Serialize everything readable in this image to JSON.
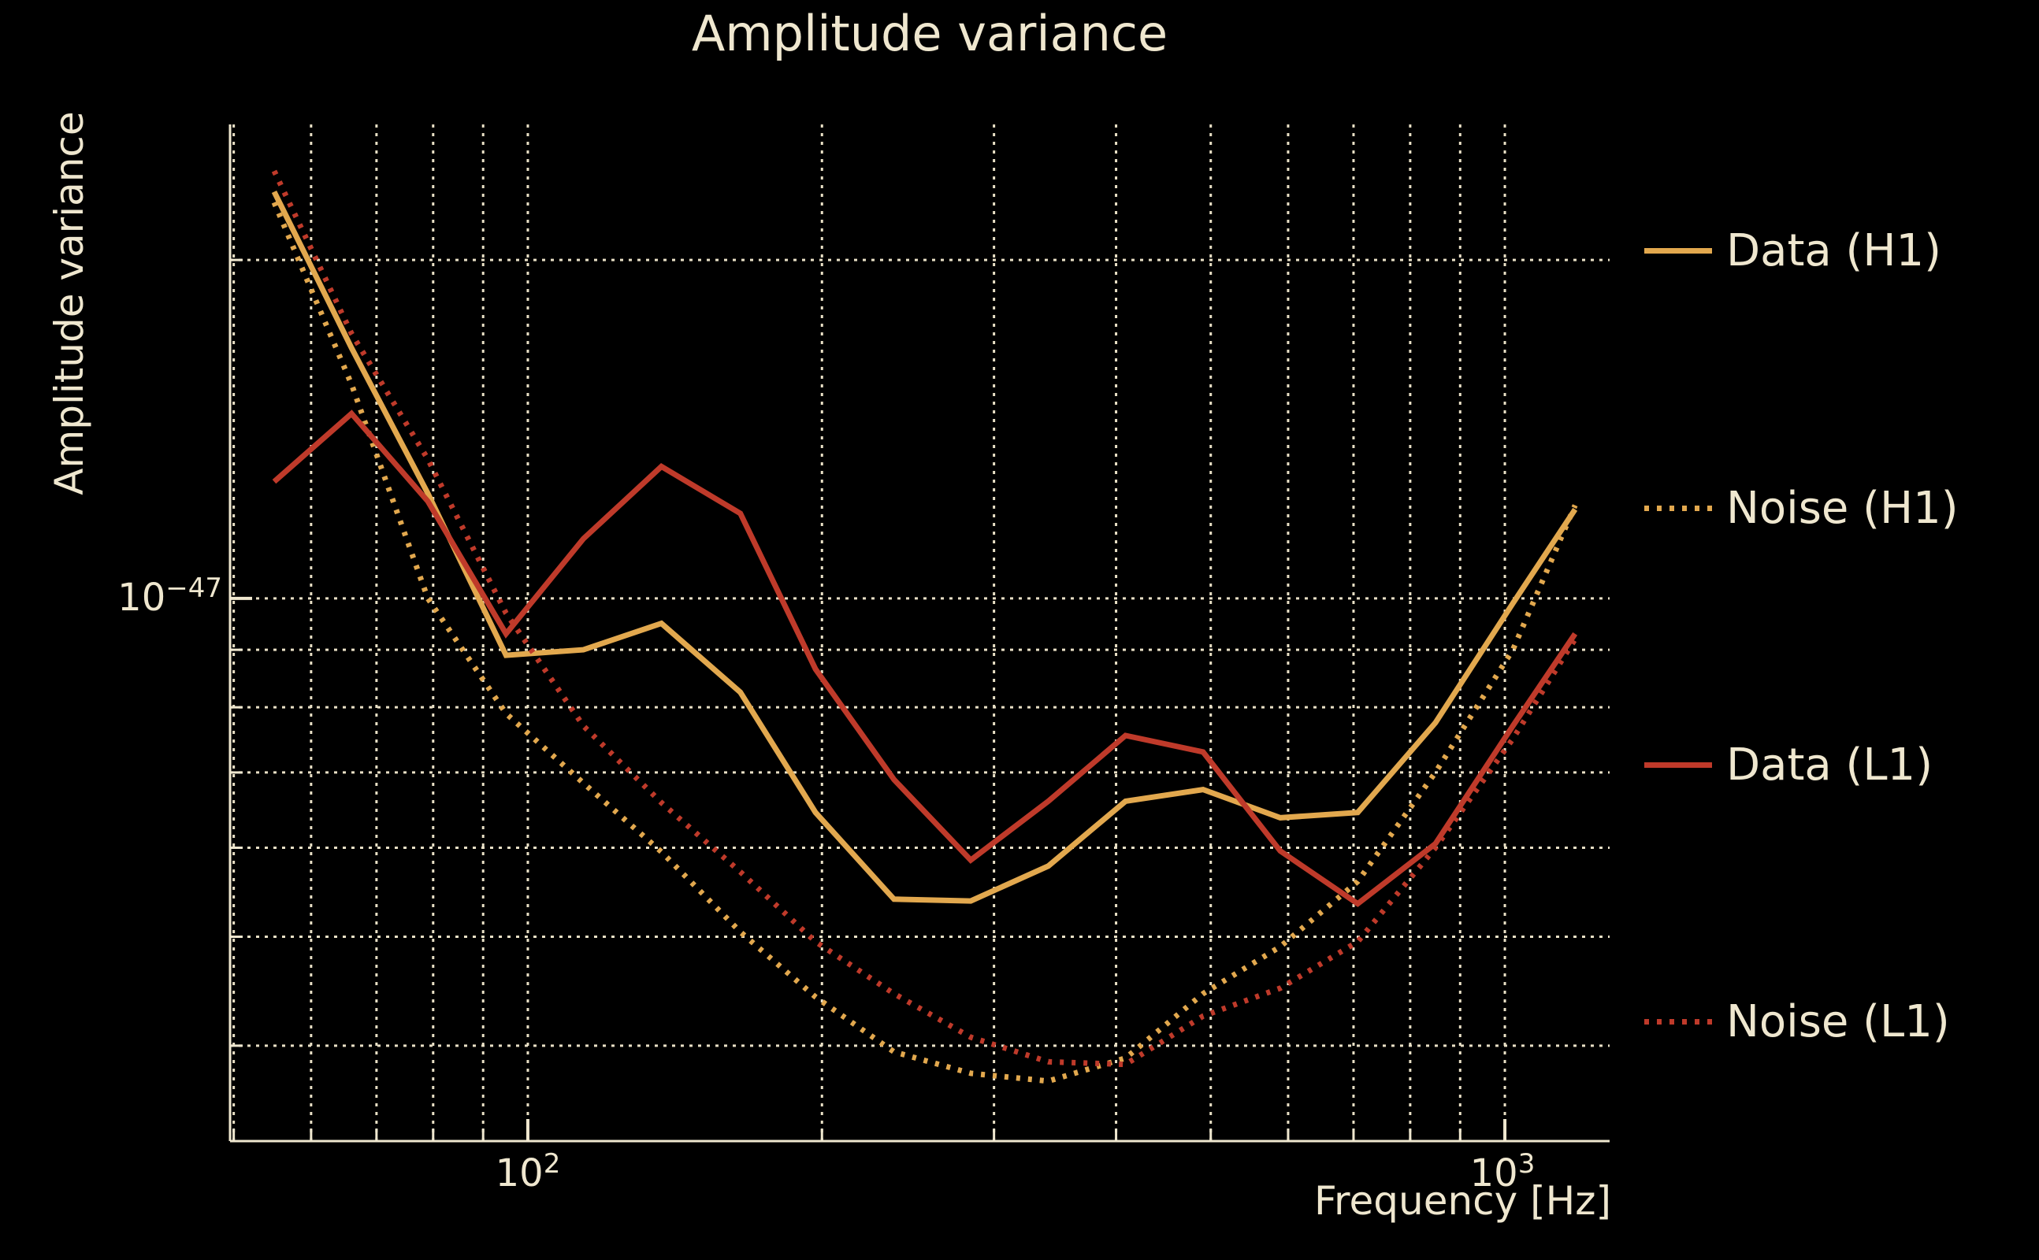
{
  "title": "Amplitude variance",
  "xlabel": "Frequency [Hz]",
  "ylabel": "Amplitude variance",
  "colors": {
    "background": "#000000",
    "foreground": "#efe7cf",
    "grid": "#e9e0c6",
    "gold": "#e2a84e",
    "red": "#bf3a2a"
  },
  "ticks": {
    "x": [
      {
        "base": "10",
        "exp": "2"
      },
      {
        "base": "10",
        "exp": "3"
      }
    ],
    "y": [
      {
        "base": "10",
        "exp": "−47"
      }
    ]
  },
  "legend": [
    {
      "label": "Data (H1)",
      "color_key": "gold",
      "style": "solid"
    },
    {
      "label": "Noise (H1)",
      "color_key": "gold",
      "style": "dotted"
    },
    {
      "label": "Data (L1)",
      "color_key": "red",
      "style": "solid"
    },
    {
      "label": "Noise (L1)",
      "color_key": "red",
      "style": "dotted"
    }
  ],
  "chart_data": {
    "type": "line",
    "title": "Amplitude variance",
    "xlabel": "Frequency [Hz]",
    "ylabel": "Amplitude variance",
    "xscale": "log",
    "yscale": "log",
    "xlim": [
      49.57,
      1280
    ],
    "ylim": [
      3.29e-48,
      2.64e-47
    ],
    "grid": true,
    "legend_position": "right-outside",
    "x_gridlines": [
      50,
      60,
      70,
      80,
      90,
      100,
      200,
      300,
      400,
      500,
      600,
      700,
      800,
      900,
      1000
    ],
    "y_gridlines": [
      4e-48,
      5e-48,
      6e-48,
      7e-48,
      8e-48,
      9e-48,
      1e-47,
      2e-47
    ],
    "x_major_ticks": [
      100,
      1000
    ],
    "y_major_ticks": [
      1e-47
    ],
    "x": [
      55,
      66,
      79,
      95,
      114,
      137,
      165,
      197,
      237,
      284,
      341,
      409,
      491,
      589,
      707,
      849,
      1019,
      1180
    ],
    "series": [
      {
        "name": "Data (H1)",
        "color_key": "gold",
        "style": "solid",
        "values": [
          2.3e-47,
          1.67e-47,
          1.24e-47,
          8.9e-48,
          9e-48,
          9.5e-48,
          8.25e-48,
          6.45e-48,
          5.4e-48,
          5.38e-48,
          5.78e-48,
          6.6e-48,
          6.76e-48,
          6.38e-48,
          6.45e-48,
          7.75e-48,
          9.9e-48,
          1.2e-47
        ]
      },
      {
        "name": "Noise (H1)",
        "color_key": "gold",
        "style": "dotted",
        "values": [
          2.25e-47,
          1.55e-47,
          1e-47,
          7.9e-48,
          6.85e-48,
          5.95e-48,
          5.05e-48,
          4.42e-48,
          3.95e-48,
          3.78e-48,
          3.72e-48,
          3.9e-48,
          4.45e-48,
          4.9e-48,
          5.6e-48,
          7e-48,
          9e-48,
          1.21e-47
        ]
      },
      {
        "name": "Data (L1)",
        "color_key": "red",
        "style": "solid",
        "values": [
          1.27e-47,
          1.46e-47,
          1.22e-47,
          9.3e-48,
          1.13e-47,
          1.31e-47,
          1.19e-47,
          8.65e-48,
          6.9e-48,
          5.85e-48,
          6.6e-48,
          7.55e-48,
          7.3e-48,
          5.96e-48,
          5.35e-48,
          6.05e-48,
          7.7e-48,
          9.3e-48
        ]
      },
      {
        "name": "Noise (L1)",
        "color_key": "red",
        "style": "dotted",
        "values": [
          2.4e-47,
          1.72e-47,
          1.33e-47,
          9.7e-48,
          7.7e-48,
          6.58e-48,
          5.71e-48,
          4.95e-48,
          4.45e-48,
          4.07e-48,
          3.87e-48,
          3.85e-48,
          4.25e-48,
          4.5e-48,
          4.95e-48,
          6e-48,
          7.5e-48,
          9.2e-48
        ]
      }
    ]
  }
}
